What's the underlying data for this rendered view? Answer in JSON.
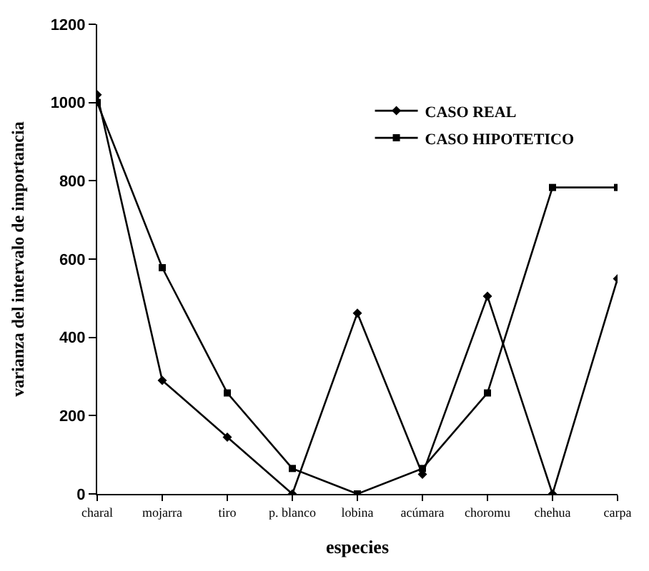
{
  "chart_data": {
    "type": "line",
    "xlabel": "especies",
    "ylabel": "varianza del intervalo de importancia",
    "categories": [
      "charal",
      "mojarra",
      "tiro",
      "p. blanco",
      "lobina",
      "acúmara",
      "choromu",
      "chehua",
      "carpa"
    ],
    "series": [
      {
        "name": "CASO REAL",
        "color": "#000000",
        "marker": "diamond",
        "values": [
          1020,
          290,
          145,
          0,
          462,
          50,
          505,
          0,
          550
        ]
      },
      {
        "name": "CASO HIPOTETICO",
        "color": "#000000",
        "marker": "square",
        "values": [
          1000,
          578,
          258,
          65,
          0,
          65,
          258,
          783,
          783
        ]
      }
    ],
    "ylim": [
      0,
      1200
    ],
    "yticks": [
      0,
      200,
      400,
      600,
      800,
      1000,
      1200
    ],
    "legend": "top right",
    "line_style": "solid"
  }
}
